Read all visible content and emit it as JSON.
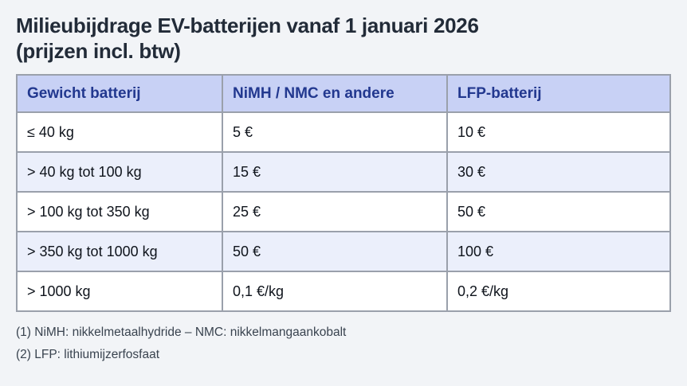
{
  "page": {
    "title_line1": "Milieubijdrage EV-batterijen vanaf 1 januari 2026",
    "title_line2": "(prijzen incl. btw)"
  },
  "table": {
    "headers": [
      "Gewicht batterij",
      "NiMH / NMC en andere",
      "LFP-batterij"
    ],
    "rows": [
      [
        "≤ 40 kg",
        "5 €",
        "10 €"
      ],
      [
        "> 40 kg tot 100 kg",
        "15 €",
        "30 €"
      ],
      [
        "> 100 kg tot 350 kg",
        "25 €",
        "50 €"
      ],
      [
        "> 350 kg tot 1000 kg",
        "50 €",
        "100 €"
      ],
      [
        "> 1000 kg",
        "0,1 €/kg",
        "0,2 €/kg"
      ]
    ]
  },
  "footnotes": [
    "(1) NiMH: nikkelmetaalhydride – NMC: nikkelmangaankobalt",
    "(2) LFP: lithiumijzerfosfaat"
  ],
  "colors": {
    "page-bg": "#f2f4f7",
    "header-bg": "#c8d1f5",
    "header-text": "#22388f",
    "stripe-bg": "#ebeffb",
    "row-bg": "#ffffff",
    "border": "#9aa0ab",
    "title-text": "#222b38",
    "cell-text": "#0f141c",
    "footnote-text": "#39434f"
  }
}
